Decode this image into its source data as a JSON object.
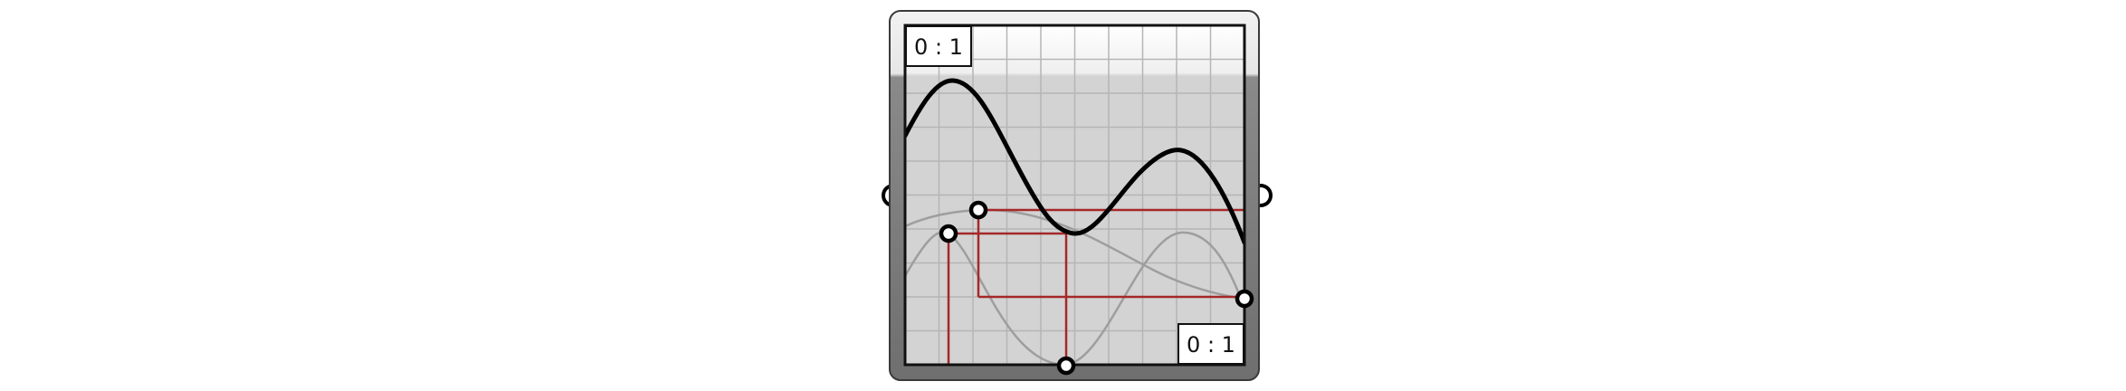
{
  "component": {
    "name": "graph-mapper",
    "x_range_label": "0 : 1",
    "y_range_label": "0 : 1"
  },
  "colors": {
    "outer_frame": "#767676",
    "graph_background": "#d6d6d6",
    "grid": "#b5b5b5",
    "curve": "#000000",
    "ghost_curve": "#9e9e9e",
    "control_lines": "#a52828",
    "label_box": "#ffffff"
  },
  "icons": {
    "input_grip": "input-grip-icon",
    "output_grip": "output-grip-icon",
    "control_point": "control-point-icon"
  }
}
